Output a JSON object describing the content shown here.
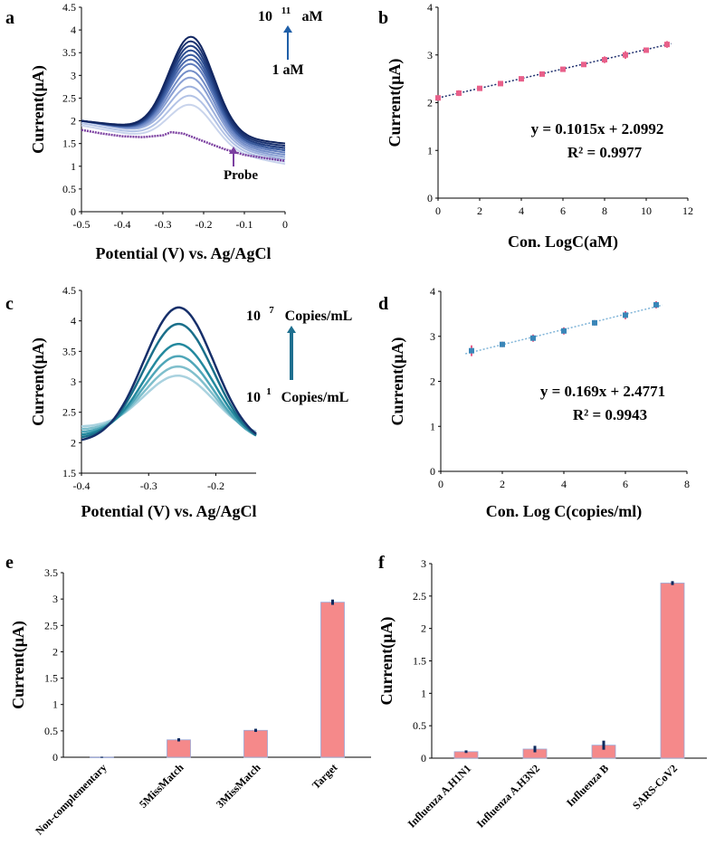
{
  "chart_data": [
    {
      "panel": "a",
      "type": "line",
      "title": "",
      "xlabel": "Potential (V) vs. Ag/AgCl",
      "ylabel": "Current(μA)",
      "xlim": [
        -0.5,
        0
      ],
      "ylim": [
        0,
        4.5
      ],
      "xticks": [
        "-0.5",
        "-0.4",
        "-0.3",
        "-0.2",
        "-0.1",
        "0"
      ],
      "yticks": [
        "0",
        "0.5",
        "1",
        "1.5",
        "2",
        "2.5",
        "3",
        "3.5",
        "4",
        "4.5"
      ],
      "annotations": {
        "top": "10 ¹¹ aM",
        "bottom": "1   aM",
        "probe": "Probe",
        "top_base": "10",
        "top_exp": "11",
        "top_unit": "aM"
      },
      "series": [
        {
          "name": "1 aM",
          "peak": 2.35,
          "left": 1.9,
          "right": 1.05,
          "color": "#c9d4ec"
        },
        {
          "name": "10 aM",
          "peak": 2.55,
          "left": 1.95,
          "right": 1.1,
          "color": "#b3c3e6"
        },
        {
          "name": "10^2 aM",
          "peak": 2.75,
          "left": 2.0,
          "right": 1.15,
          "color": "#9fb2de"
        },
        {
          "name": "10^3 aM",
          "peak": 2.95,
          "left": 2.0,
          "right": 1.2,
          "color": "#8aa0d4"
        },
        {
          "name": "10^4 aM",
          "peak": 3.1,
          "left": 2.0,
          "right": 1.25,
          "color": "#738dc8"
        },
        {
          "name": "10^5 aM",
          "peak": 3.25,
          "left": 2.0,
          "right": 1.3,
          "color": "#5f7cbd"
        },
        {
          "name": "10^6 aM",
          "peak": 3.35,
          "left": 2.0,
          "right": 1.35,
          "color": "#4c6aad"
        },
        {
          "name": "10^7 aM",
          "peak": 3.45,
          "left": 2.0,
          "right": 1.35,
          "color": "#3a5b9e"
        },
        {
          "name": "10^8 aM",
          "peak": 3.55,
          "left": 2.0,
          "right": 1.4,
          "color": "#2d4e92"
        },
        {
          "name": "10^9 aM",
          "peak": 3.65,
          "left": 2.0,
          "right": 1.4,
          "color": "#233f80"
        },
        {
          "name": "10^10 aM",
          "peak": 3.75,
          "left": 2.0,
          "right": 1.45,
          "color": "#1a3270"
        },
        {
          "name": "10^11 aM",
          "peak": 3.85,
          "left": 2.0,
          "right": 1.5,
          "color": "#112661"
        }
      ],
      "probe": {
        "name": "Probe",
        "color": "#7b3fa0",
        "x": [
          -0.5,
          -0.45,
          -0.4,
          -0.35,
          -0.3,
          -0.28,
          -0.25,
          -0.2,
          -0.15,
          -0.1,
          -0.05,
          0
        ],
        "y": [
          1.8,
          1.72,
          1.66,
          1.64,
          1.68,
          1.75,
          1.72,
          1.55,
          1.38,
          1.25,
          1.18,
          1.12
        ]
      }
    },
    {
      "panel": "b",
      "type": "scatter",
      "xlabel": "Con. LogC(aM)",
      "ylabel": "Current(μA)",
      "xlim": [
        0,
        12
      ],
      "ylim": [
        0,
        4
      ],
      "xticks": [
        "0",
        "2",
        "4",
        "6",
        "8",
        "10",
        "12"
      ],
      "yticks": [
        "0",
        "1",
        "2",
        "3",
        "4"
      ],
      "x": [
        0,
        1,
        2,
        3,
        4,
        5,
        6,
        7,
        8,
        9,
        10,
        11
      ],
      "y": [
        2.1,
        2.2,
        2.3,
        2.4,
        2.5,
        2.6,
        2.7,
        2.8,
        2.9,
        3.0,
        3.1,
        3.22
      ],
      "err": [
        0.03,
        0.06,
        0.04,
        0.03,
        0.05,
        0.03,
        0.05,
        0.04,
        0.07,
        0.08,
        0.03,
        0.07
      ],
      "fit": {
        "slope": 0.1015,
        "intercept": 2.0992
      },
      "equation": "y = 0.1015x + 2.0992",
      "r2": "R² = 0.9977",
      "marker_color": "#e8608a",
      "fit_color": "#1f2f6e"
    },
    {
      "panel": "c",
      "type": "line",
      "xlabel": "Potential (V) vs. Ag/AgCl",
      "ylabel": "Current(μA)",
      "xlim": [
        -0.4,
        -0.14
      ],
      "ylim": [
        1.5,
        4.5
      ],
      "xticks": [
        "-0.4",
        "-0.3",
        "-0.2"
      ],
      "xtick_values": [
        -0.4,
        -0.3,
        -0.2
      ],
      "yticks": [
        "1.5",
        "2",
        "2.5",
        "3",
        "3.5",
        "4",
        "4.5"
      ],
      "annotations": {
        "top_base": "10",
        "top_exp": "7",
        "top_unit": "Copies/mL",
        "bottom_base": "10",
        "bottom_exp": "1",
        "bottom_unit": "Copies/mL"
      },
      "series": [
        {
          "name": "10^1 Copies/mL",
          "peak": 3.1,
          "left": 2.25,
          "right": 2.1,
          "color": "#a9d2df"
        },
        {
          "name": "10^2 Copies/mL",
          "peak": 3.25,
          "left": 2.2,
          "right": 2.05,
          "color": "#7fbfcc"
        },
        {
          "name": "10^3 Copies/mL",
          "peak": 3.42,
          "left": 2.15,
          "right": 2.0,
          "color": "#4fa6b8"
        },
        {
          "name": "10^4 Copies/mL",
          "peak": 3.62,
          "left": 2.1,
          "right": 2.0,
          "color": "#23899e"
        },
        {
          "name": "10^5 Copies/mL",
          "peak": 3.95,
          "left": 2.05,
          "right": 1.95,
          "color": "#1a6f8a"
        },
        {
          "name": "10^7 Copies/mL",
          "peak": 4.22,
          "left": 2.0,
          "right": 1.95,
          "color": "#162f6a"
        }
      ]
    },
    {
      "panel": "d",
      "type": "scatter",
      "xlabel": "Con. Log C(copies/ml)",
      "ylabel": "Current(μA)",
      "xlim": [
        0,
        8
      ],
      "ylim": [
        0,
        4
      ],
      "xticks": [
        "0",
        "2",
        "4",
        "6",
        "8"
      ],
      "yticks": [
        "0",
        "1",
        "2",
        "3",
        "4"
      ],
      "x": [
        1,
        2,
        3,
        4,
        5,
        6,
        7
      ],
      "y": [
        2.68,
        2.82,
        2.96,
        3.12,
        3.3,
        3.47,
        3.7
      ],
      "err": [
        0.12,
        0.06,
        0.08,
        0.08,
        0.06,
        0.09,
        0.08
      ],
      "fit": {
        "slope": 0.169,
        "intercept": 2.4771
      },
      "equation": "y = 0.169x + 2.4771",
      "r2": "R² = 0.9943",
      "marker_color": "#3a86b8",
      "err_color": "#e8608a",
      "fit_color": "#7fb4d8"
    },
    {
      "panel": "e",
      "type": "bar",
      "ylabel": "Current(μA)",
      "ylim": [
        0,
        3.5
      ],
      "yticks": [
        "0",
        "0.5",
        "1",
        "1.5",
        "2",
        "2.5",
        "3",
        "3.5"
      ],
      "categories": [
        "Non-complementary",
        "5MissMatch",
        "3MissMatch",
        "Target"
      ],
      "values": [
        0.0,
        0.33,
        0.51,
        2.94
      ],
      "err": [
        0.01,
        0.03,
        0.03,
        0.05
      ],
      "bar_color": "#f5898a",
      "err_color": "#0d2a5e"
    },
    {
      "panel": "f",
      "type": "bar",
      "ylabel": "Current(μA)",
      "ylim": [
        0,
        3
      ],
      "yticks": [
        "0",
        "0.5",
        "1",
        "1.5",
        "2",
        "2.5",
        "3"
      ],
      "categories": [
        "Influenza A.H1N1",
        "Influenza A.H3N2",
        "Influenza B",
        "SARS-CoV2"
      ],
      "values": [
        0.1,
        0.14,
        0.2,
        2.7
      ],
      "err": [
        0.02,
        0.05,
        0.07,
        0.03
      ],
      "bar_color": "#f5898a",
      "err_color": "#0d2a5e"
    }
  ],
  "panels": {
    "a": "a",
    "b": "b",
    "c": "c",
    "d": "d",
    "e": "e",
    "f": "f"
  }
}
